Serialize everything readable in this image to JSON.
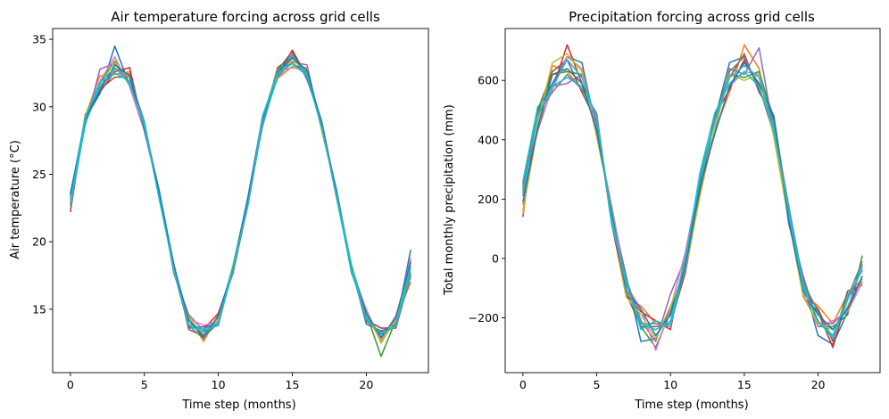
{
  "chart_data": [
    {
      "type": "line",
      "title": "Air temperature forcing across grid cells",
      "xlabel": "Time step (months)",
      "ylabel": "Air temperature (°C)",
      "xlim": [
        -1.2,
        24.2
      ],
      "ylim": [
        10.3,
        35.8
      ],
      "xticks": [
        0,
        5,
        10,
        15,
        20
      ],
      "yticks": [
        15,
        20,
        25,
        30,
        35
      ],
      "grid": false,
      "base": {
        "x": [
          0,
          1,
          2,
          3,
          4,
          5,
          6,
          7,
          8,
          9,
          10,
          11,
          12,
          13,
          14,
          15,
          16,
          17,
          18,
          19,
          20,
          21,
          22,
          23
        ],
        "y": [
          23.0,
          29.0,
          31.5,
          33.0,
          32.0,
          28.5,
          23.5,
          18.0,
          14.0,
          13.2,
          14.2,
          18.0,
          23.0,
          29.0,
          32.5,
          33.5,
          32.5,
          28.5,
          23.5,
          18.0,
          14.5,
          13.0,
          14.0,
          18.0
        ]
      },
      "series": [
        {
          "offsets": [
            0.3,
            0.1,
            -0.5,
            1.5,
            -0.4,
            0.2,
            -0.1,
            0.3,
            -0.4,
            0.5,
            -0.3,
            0.2,
            0.1,
            -0.3,
            0.2,
            0.6,
            -0.5,
            0.3,
            -0.2,
            0.1,
            -0.6,
            0.4,
            -0.2,
            1.4
          ]
        },
        {
          "offsets": [
            -0.4,
            0.3,
            0.8,
            -0.6,
            0.6,
            -0.2,
            0.2,
            -0.3,
            0.5,
            -0.6,
            0.4,
            -0.2,
            -0.1,
            0.2,
            -0.4,
            -0.5,
            0.4,
            -0.2,
            0.3,
            -0.1,
            0.5,
            -0.5,
            0.3,
            -1.0
          ]
        },
        {
          "offsets": [
            0.6,
            -0.2,
            0.3,
            0.4,
            -0.2,
            0.3,
            -0.3,
            0.1,
            0.2,
            -0.3,
            -0.2,
            0.3,
            0.2,
            0.1,
            0.3,
            -0.3,
            0.1,
            0.2,
            0.1,
            -0.3,
            0.2,
            -1.5,
            0.2,
            0.6
          ]
        },
        {
          "offsets": [
            -0.8,
            0.4,
            -0.4,
            -0.4,
            0.9,
            -0.3,
            0.1,
            -0.2,
            -0.3,
            0.3,
            0.5,
            -0.1,
            -0.3,
            -0.1,
            -0.2,
            0.7,
            -0.3,
            0.1,
            -0.3,
            0.3,
            -0.3,
            0.6,
            -0.4,
            -0.4
          ]
        },
        {
          "offsets": [
            0.2,
            -0.4,
            1.3,
            0.2,
            -0.3,
            0.1,
            0.3,
            -0.4,
            0.6,
            0.2,
            -0.4,
            0.1,
            0.3,
            0.4,
            -0.3,
            -0.2,
            0.6,
            -0.3,
            0.2,
            -0.2,
            0.3,
            -0.3,
            0.5,
            0.2
          ]
        },
        {
          "offsets": [
            -0.2,
            0.2,
            -0.2,
            -0.8,
            0.2,
            0.4,
            -0.2,
            0.2,
            -0.5,
            -0.2,
            0.3,
            -0.3,
            -0.2,
            -0.2,
            0.4,
            0.2,
            -0.2,
            0.4,
            -0.1,
            0.2,
            -0.2,
            0.2,
            -0.3,
            -0.6
          ]
        },
        {
          "offsets": [
            0.4,
            0.2,
            0.4,
            0.7,
            -0.5,
            -0.3,
            0.1,
            -0.1,
            0.3,
            0.6,
            -0.1,
            0.2,
            0.1,
            0.3,
            0.1,
            -0.6,
            0.2,
            -0.1,
            0.3,
            0.1,
            0.4,
            -0.2,
            0.1,
            0.8
          ]
        },
        {
          "offsets": [
            -0.6,
            -0.1,
            -0.1,
            -0.2,
            0.4,
            0.2,
            -0.2,
            0.3,
            -0.2,
            -0.4,
            0.2,
            -0.2,
            0.2,
            -0.4,
            -0.1,
            0.4,
            -0.4,
            0.2,
            -0.2,
            -0.1,
            -0.4,
            0.3,
            -0.1,
            -0.2
          ]
        },
        {
          "offsets": [
            0.1,
            0.3,
            0.2,
            0.3,
            0.1,
            -0.1,
            0.2,
            -0.2,
            0.4,
            -0.1,
            0.1,
            0.3,
            -0.2,
            0.2,
            0.2,
            -0.1,
            0.3,
            -0.3,
            0.1,
            0.3,
            0.1,
            -0.4,
            0.3,
            0.3
          ]
        },
        {
          "offsets": [
            -0.3,
            -0.3,
            0.1,
            -0.5,
            -0.1,
            0.3,
            -0.1,
            0.1,
            -0.1,
            0.3,
            -0.2,
            -0.1,
            -0.1,
            -0.2,
            -0.3,
            0.3,
            -0.1,
            0.3,
            -0.3,
            -0.2,
            -0.1,
            0.1,
            -0.2,
            -0.5
          ]
        },
        {
          "offsets": [
            0.5,
            0.1,
            -0.3,
            0.1,
            0.3,
            -0.2,
            0.3,
            0.2,
            0.2,
            -0.2,
            0.3,
            0.1,
            0.3,
            0.1,
            0.1,
            0.1,
            0.2,
            0.1,
            0.2,
            0.1,
            0.2,
            -0.1,
            0.4,
            0.5
          ]
        },
        {
          "offsets": [
            -0.1,
            0.2,
            0.3,
            -0.1,
            -0.3,
            0.1,
            -0.3,
            -0.1,
            -0.2,
            0.1,
            -0.3,
            0.2,
            -0.3,
            0.3,
            0.0,
            -0.3,
            -0.2,
            -0.1,
            -0.1,
            0.2,
            -0.2,
            0.2,
            -0.3,
            0.1
          ]
        }
      ]
    },
    {
      "type": "line",
      "title": "Precipitation forcing across grid cells",
      "xlabel": "Time step (months)",
      "ylabel": "Total monthly precipitation (mm)",
      "xlim": [
        -1.2,
        24.2
      ],
      "ylim": [
        -385,
        775
      ],
      "xticks": [
        0,
        5,
        10,
        15,
        20
      ],
      "yticks": [
        -200,
        0,
        200,
        400,
        600
      ],
      "grid": false,
      "base": {
        "x": [
          0,
          1,
          2,
          3,
          4,
          5,
          6,
          7,
          8,
          9,
          10,
          11,
          12,
          13,
          14,
          15,
          16,
          17,
          18,
          19,
          20,
          21,
          22,
          23
        ],
        "y": [
          200,
          470,
          600,
          650,
          600,
          450,
          150,
          -100,
          -200,
          -250,
          -200,
          -20,
          250,
          450,
          600,
          650,
          600,
          450,
          150,
          -100,
          -200,
          -250,
          -150,
          -50
        ]
      },
      "series": [
        {
          "offsets": [
            20,
            30,
            -10,
            30,
            60,
            -20,
            10,
            40,
            -80,
            -20,
            30,
            -20,
            10,
            20,
            60,
            30,
            -30,
            20,
            -30,
            20,
            -60,
            -40,
            -30,
            -10
          ]
        },
        {
          "offsets": [
            -40,
            -30,
            50,
            -20,
            -30,
            30,
            -20,
            -30,
            40,
            30,
            -30,
            20,
            -20,
            -20,
            -40,
            70,
            40,
            -30,
            20,
            -20,
            40,
            30,
            30,
            -20
          ]
        },
        {
          "offsets": [
            30,
            20,
            20,
            -20,
            20,
            -30,
            30,
            20,
            -30,
            -50,
            20,
            -30,
            30,
            10,
            20,
            -40,
            30,
            20,
            -20,
            30,
            -30,
            20,
            -40,
            60
          ]
        },
        {
          "offsets": [
            -60,
            40,
            -30,
            70,
            -10,
            20,
            -30,
            -20,
            20,
            40,
            -40,
            30,
            -30,
            30,
            -30,
            20,
            -20,
            -30,
            30,
            -30,
            20,
            -50,
            20,
            -30
          ]
        },
        {
          "offsets": [
            10,
            -40,
            -20,
            -60,
            20,
            -10,
            20,
            30,
            -10,
            -30,
            80,
            20,
            20,
            -20,
            40,
            -30,
            110,
            -20,
            -20,
            40,
            -20,
            30,
            -20,
            30
          ]
        },
        {
          "offsets": [
            50,
            30,
            30,
            20,
            -40,
            10,
            -10,
            -20,
            -30,
            20,
            -20,
            -30,
            -30,
            30,
            10,
            40,
            -40,
            30,
            10,
            -10,
            30,
            -30,
            40,
            -40
          ]
        },
        {
          "offsets": [
            -20,
            -20,
            -30,
            30,
            40,
            -20,
            30,
            10,
            30,
            -60,
            30,
            40,
            20,
            -30,
            -20,
            -20,
            20,
            -20,
            -10,
            -20,
            -30,
            40,
            -30,
            -30
          ]
        },
        {
          "offsets": [
            40,
            20,
            -40,
            -30,
            -30,
            40,
            -20,
            30,
            -20,
            30,
            -20,
            -20,
            -10,
            20,
            30,
            30,
            -30,
            10,
            30,
            20,
            20,
            -20,
            20,
            40
          ]
        },
        {
          "offsets": [
            -50,
            -10,
            60,
            40,
            30,
            -40,
            20,
            -30,
            10,
            -20,
            40,
            -20,
            -40,
            -10,
            20,
            -50,
            20,
            -40,
            -20,
            -30,
            -20,
            10,
            -10,
            -20
          ]
        },
        {
          "offsets": [
            60,
            40,
            -20,
            -40,
            -20,
            30,
            -30,
            20,
            -40,
            40,
            -30,
            10,
            40,
            40,
            -10,
            -20,
            -20,
            -20,
            20,
            10,
            -10,
            -20,
            10,
            20
          ]
        },
        {
          "offsets": [
            -10,
            -30,
            20,
            -10,
            -10,
            -20,
            10,
            -10,
            30,
            -10,
            10,
            -10,
            -10,
            -30,
            -20,
            10,
            -10,
            30,
            -20,
            -10,
            10,
            10,
            -20,
            -10
          ]
        },
        {
          "offsets": [
            20,
            10,
            -20,
            20,
            10,
            20,
            -10,
            10,
            -20,
            10,
            -10,
            20,
            20,
            10,
            10,
            0,
            10,
            -10,
            10,
            0,
            -10,
            -10,
            20,
            10
          ]
        }
      ]
    }
  ],
  "colors": [
    "#1f77b4",
    "#ff7f0e",
    "#2ca02c",
    "#d62728",
    "#9467bd",
    "#8c564b",
    "#e377c2",
    "#7f7f7f",
    "#bcbd22",
    "#17becf",
    "#1f77b4",
    "#17becf"
  ]
}
